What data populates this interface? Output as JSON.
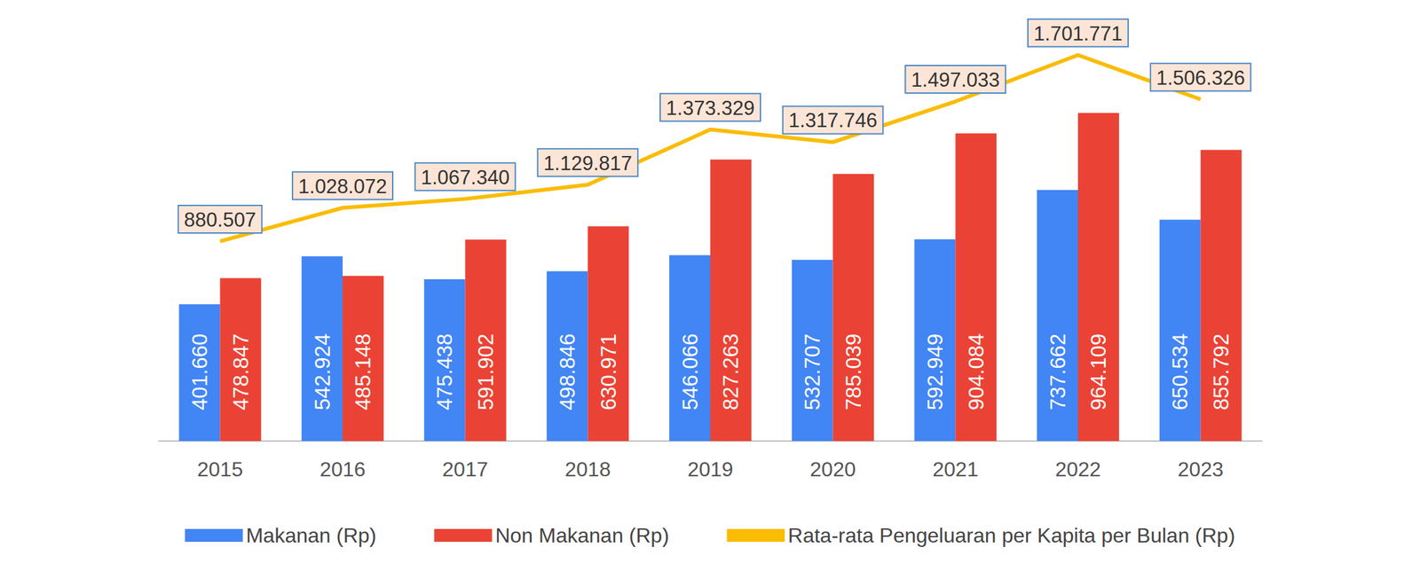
{
  "chart_data": {
    "type": "bar",
    "categories": [
      "2015",
      "2016",
      "2017",
      "2018",
      "2019",
      "2020",
      "2021",
      "2022",
      "2023"
    ],
    "series": [
      {
        "name": "Makanan (Rp)",
        "color": "#4285f4",
        "values": [
          401660,
          542924,
          475438,
          498846,
          546066,
          532707,
          592949,
          737662,
          650534
        ],
        "value_labels": [
          "401.660",
          "542.924",
          "475.438",
          "498.846",
          "546.066",
          "532.707",
          "592.949",
          "737.662",
          "650.534"
        ]
      },
      {
        "name": "Non Makanan (Rp)",
        "color": "#ea4335",
        "values": [
          478847,
          485148,
          591902,
          630971,
          827263,
          785039,
          904084,
          964109,
          855792
        ],
        "value_labels": [
          "478.847",
          "485.148",
          "591.902",
          "630.971",
          "827.263",
          "785.039",
          "904.084",
          "964.109",
          "855.792"
        ]
      },
      {
        "name": "Rata-rata Pengeluaran per Kapita per Bulan (Rp)",
        "type": "line",
        "axis": "y2",
        "color": "#fbbc04",
        "values": [
          880507,
          1028072,
          1067340,
          1129817,
          1373329,
          1317746,
          1497033,
          1701771,
          1506326
        ],
        "value_labels": [
          "880.507",
          "1.028.072",
          "1.067.340",
          "1.129.817",
          "1.373.329",
          "1.317.746",
          "1.497.033",
          "1.701.771",
          "1.506.326"
        ]
      }
    ],
    "ylim": [
      0,
      1200000
    ],
    "y2lim": [
      0,
      1800000
    ],
    "data_labels": true,
    "tick_labels": "x",
    "legend": "bottom",
    "grid": false
  }
}
